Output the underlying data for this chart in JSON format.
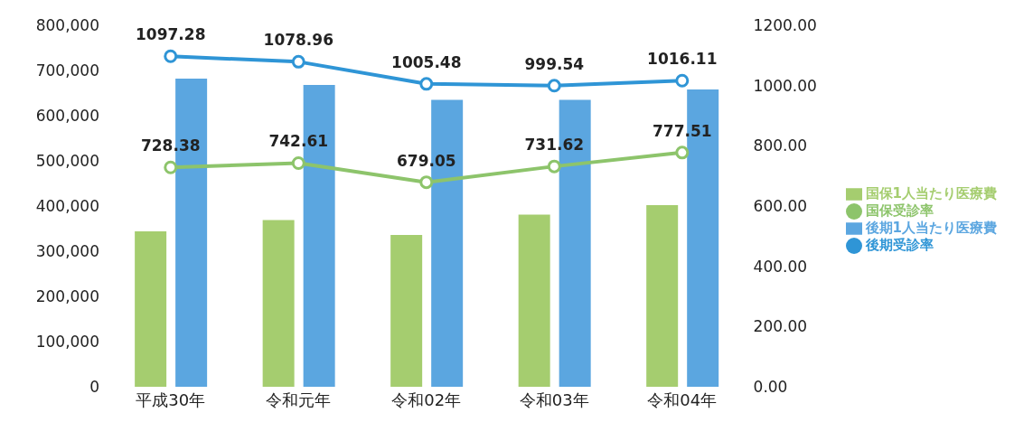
{
  "chart_data": {
    "type": "bar",
    "categories": [
      "平成30年",
      "令和元年",
      "令和02年",
      "令和03年",
      "令和04年"
    ],
    "series": [
      {
        "name": "国保1人当たり医療費",
        "color": "#a5cd6f",
        "values": [
          344000,
          369000,
          336000,
          381000,
          402000
        ]
      },
      {
        "name": "後期1人当たり医療費",
        "color": "#5ba6e0",
        "values": [
          682000,
          668000,
          635000,
          635000,
          658000
        ]
      },
      {
        "name": "国保受診率",
        "type": "line",
        "axis": "y2",
        "color": "#8dc46b",
        "values": [
          728.38,
          742.61,
          679.05,
          731.62,
          777.51
        ],
        "marker": "circle",
        "data_labels": true
      },
      {
        "name": "後期受診率",
        "type": "line",
        "axis": "y2",
        "color": "#2f95d6",
        "values": [
          1097.28,
          1078.96,
          1005.48,
          999.54,
          1016.11
        ],
        "marker": "circle",
        "data_labels": true
      }
    ],
    "ylim": [
      0,
      800000
    ],
    "yticks": [
      {
        "value": 0,
        "label": "0"
      },
      {
        "value": 100000,
        "label": "100,000"
      },
      {
        "value": 200000,
        "label": "200,000"
      },
      {
        "value": 300000,
        "label": "300,000"
      },
      {
        "value": 400000,
        "label": "400,000"
      },
      {
        "value": 500000,
        "label": "500,000"
      },
      {
        "value": 600000,
        "label": "600,000"
      },
      {
        "value": 700000,
        "label": "700,000"
      },
      {
        "value": 800000,
        "label": "800,000"
      }
    ],
    "y2lim": [
      0,
      1200
    ],
    "y2ticks": [
      {
        "value": 0,
        "label": "0.00"
      },
      {
        "value": 200,
        "label": "200.00"
      },
      {
        "value": 400,
        "label": "400.00"
      },
      {
        "value": 600,
        "label": "600.00"
      },
      {
        "value": 800,
        "label": "800.00"
      },
      {
        "value": 1000,
        "label": "1000.00"
      },
      {
        "value": 1200,
        "label": "1200.00"
      }
    ],
    "grid": false,
    "legend": "right"
  }
}
